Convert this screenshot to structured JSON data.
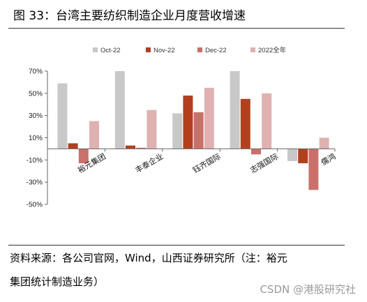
{
  "title": "图 33：台湾主要纺织制造企业月度营收增速",
  "chart_data": {
    "type": "bar",
    "categories": [
      "裕元集团",
      "丰泰企业",
      "钰齐国际",
      "志强国际",
      "儒鸿"
    ],
    "series": [
      {
        "name": "Oct-22",
        "values": [
          59,
          70,
          32,
          70,
          -11
        ],
        "color": "#c8c8c8"
      },
      {
        "name": "Nov-22",
        "values": [
          5,
          3,
          48,
          45,
          -13
        ],
        "color": "#b2401f"
      },
      {
        "name": "Dec-22",
        "values": [
          -13,
          1,
          33,
          -5,
          -37
        ],
        "color": "#c9706a"
      },
      {
        "name": "2022全年",
        "values": [
          25,
          35,
          55,
          50,
          10
        ],
        "color": "#e0b1b1"
      }
    ],
    "yticks": [
      "70%",
      "50%",
      "30%",
      "10%",
      "-10%",
      "-30%",
      "-50%"
    ],
    "ylim": [
      -50,
      70
    ],
    "legend": "top",
    "grid": false
  },
  "source": {
    "line1": "资料来源：各公司官网，Wind，山西证券研究所（注：裕元",
    "line2": "集团统计制造业务）"
  },
  "watermark": "CSDN @港股研究社"
}
